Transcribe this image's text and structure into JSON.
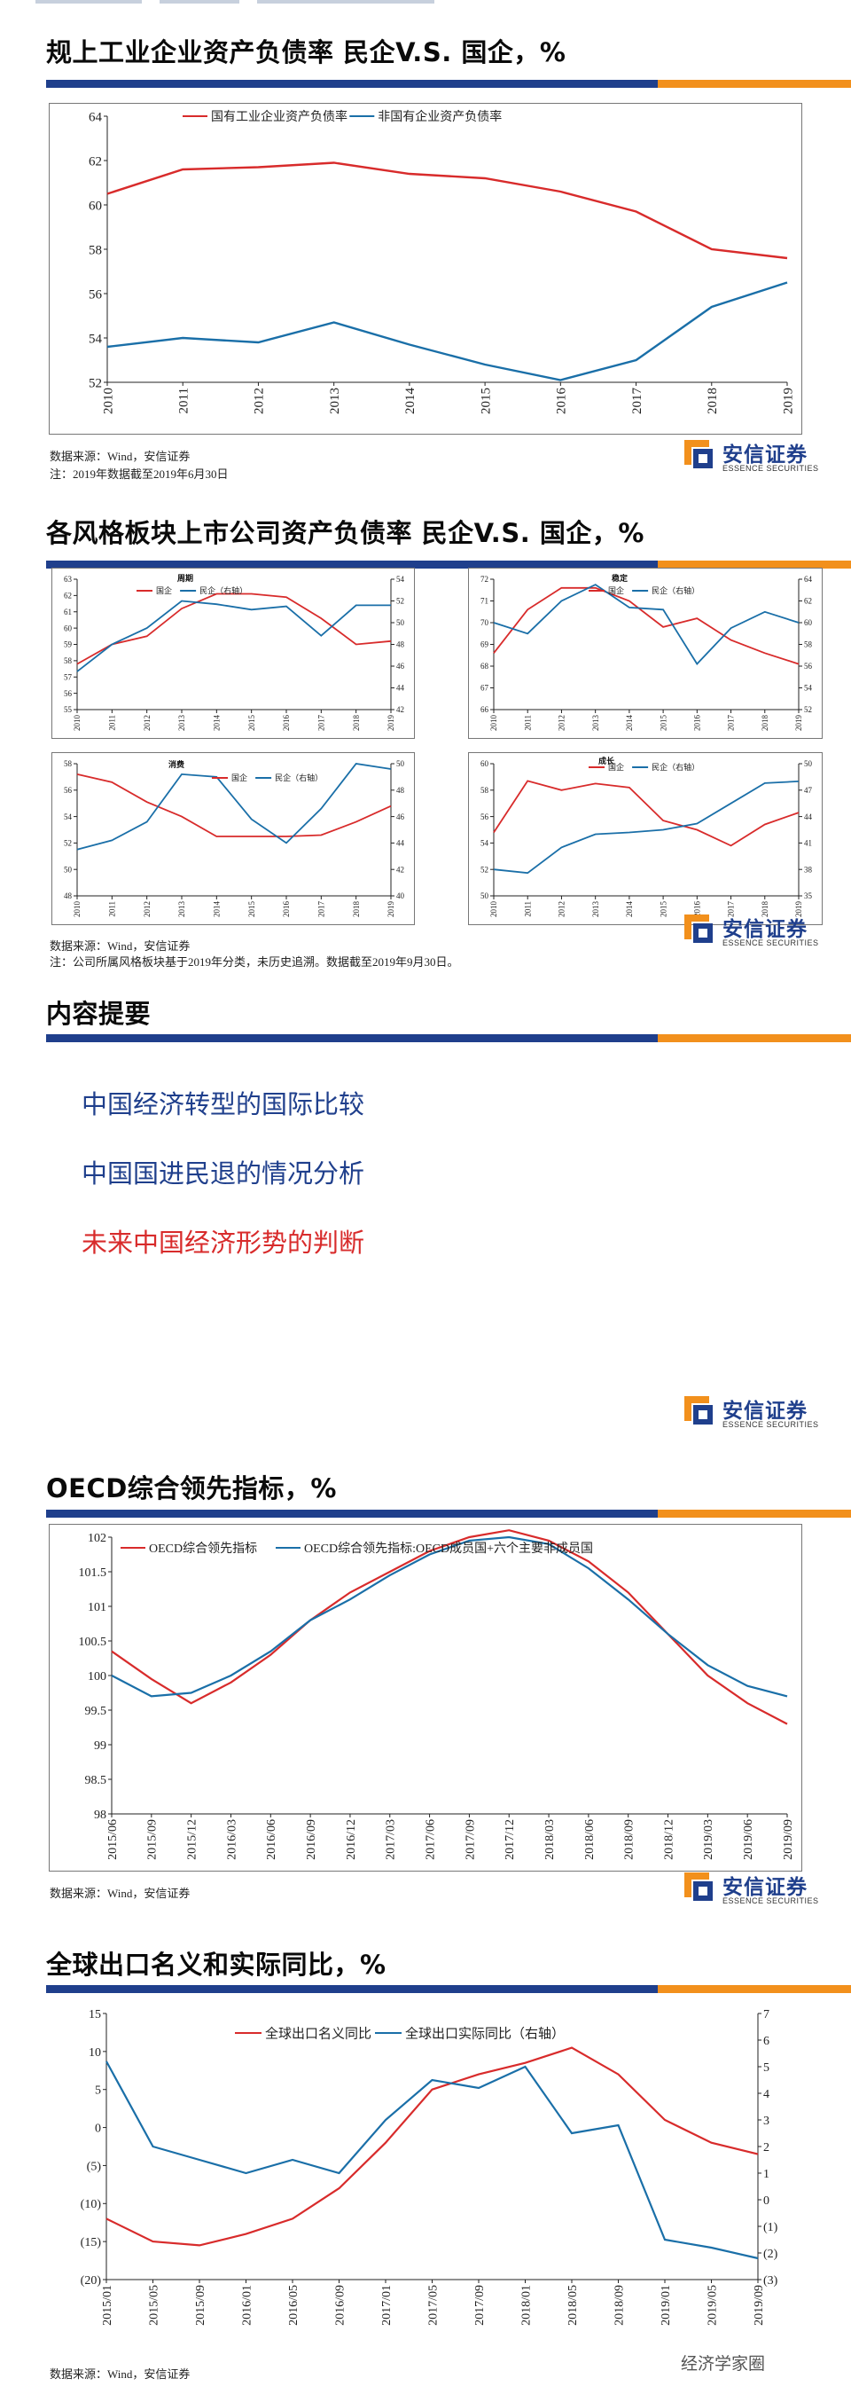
{
  "brand": {
    "name_cn": "安信证券",
    "name_en": "ESSENCE SECURITIES",
    "colors": {
      "blue": "#1f3f8c",
      "orange": "#f2901c",
      "red": "#d82b2b",
      "line_blue": "#1a6fa8"
    }
  },
  "slides": {
    "s1": {
      "title": "规上工业企业资产负债率 民企V.S. 国企，%",
      "source": "数据来源：Wind，安信证券",
      "note": "注：2019年数据截至2019年6月30日"
    },
    "s2": {
      "title": "各风格板块上市公司资产负债率 民企V.S. 国企，%",
      "source": "数据来源：Wind，安信证券",
      "note": "注：公司所属风格板块基于2019年分类，未历史追溯。数据截至2019年9月30日。"
    },
    "s3": {
      "title": "内容提要",
      "bullets": [
        {
          "text": "中国经济转型的国际比较",
          "color": "blue"
        },
        {
          "text": "中国国进民退的情况分析",
          "color": "blue"
        },
        {
          "text": "未来中国经济形势的判断",
          "color": "red"
        }
      ]
    },
    "s4": {
      "title": "OECD综合领先指标，%",
      "source": "数据来源：Wind，安信证券"
    },
    "s5": {
      "title": "全球出口名义和实际同比，%",
      "source": "数据来源：Wind，安信证券"
    }
  },
  "watermark": "经济学家圈",
  "chart_data": [
    {
      "id": "leverage_industrial",
      "type": "line",
      "x": [
        "2010",
        "2011",
        "2012",
        "2013",
        "2014",
        "2015",
        "2016",
        "2017",
        "2018",
        "2019"
      ],
      "series": [
        {
          "name": "国有工业企业资产负债率",
          "color": "#d82b2b",
          "values": [
            60.5,
            61.6,
            61.7,
            61.9,
            61.4,
            61.2,
            60.6,
            59.7,
            58.0,
            57.6
          ]
        },
        {
          "name": "非国有企业资产负债率",
          "color": "#1a6fa8",
          "values": [
            53.6,
            54.0,
            53.8,
            54.7,
            53.7,
            52.8,
            52.1,
            53.0,
            55.4,
            56.5
          ]
        }
      ],
      "ylim": [
        52,
        64
      ],
      "yticks": [
        52,
        54,
        56,
        58,
        60,
        62,
        64
      ],
      "legend": "top"
    },
    {
      "id": "style_cycle",
      "type": "line",
      "subtitle": "周期",
      "x": [
        "2010",
        "2011",
        "2012",
        "2013",
        "2014",
        "2015",
        "2016",
        "2017",
        "2018",
        "2019"
      ],
      "series": [
        {
          "name": "国企",
          "color": "#d82b2b",
          "axis": "left",
          "values": [
            57.8,
            59.0,
            59.5,
            61.2,
            62.1,
            62.1,
            61.9,
            60.6,
            59.0,
            59.2
          ]
        },
        {
          "name": "民企（右轴）",
          "color": "#1a6fa8",
          "axis": "right",
          "values": [
            45.5,
            48.0,
            49.5,
            52.0,
            51.7,
            51.2,
            51.5,
            48.8,
            51.6,
            51.6
          ]
        }
      ],
      "ylim": [
        55,
        63
      ],
      "y2lim": [
        42,
        54
      ]
    },
    {
      "id": "style_stable",
      "type": "line",
      "subtitle": "稳定",
      "x": [
        "2010",
        "2011",
        "2012",
        "2013",
        "2014",
        "2015",
        "2016",
        "2017",
        "2018",
        "2019"
      ],
      "series": [
        {
          "name": "国企",
          "color": "#d82b2b",
          "axis": "left",
          "values": [
            68.6,
            70.6,
            71.6,
            71.6,
            71.0,
            69.8,
            70.2,
            69.2,
            68.6,
            68.1
          ]
        },
        {
          "name": "民企（右轴）",
          "color": "#1a6fa8",
          "axis": "right",
          "values": [
            60,
            59,
            62,
            63.5,
            61.4,
            61.2,
            56.2,
            59.5,
            61,
            60
          ]
        }
      ],
      "ylim": [
        66,
        72
      ],
      "y2lim": [
        52,
        64
      ]
    },
    {
      "id": "style_consumer",
      "type": "line",
      "subtitle": "消费",
      "x": [
        "2010",
        "2011",
        "2012",
        "2013",
        "2014",
        "2015",
        "2016",
        "2017",
        "2018",
        "2019"
      ],
      "series": [
        {
          "name": "国企",
          "color": "#d82b2b",
          "axis": "left",
          "values": [
            57.2,
            56.6,
            55.1,
            54.0,
            52.5,
            52.5,
            52.5,
            52.6,
            53.6,
            54.8
          ]
        },
        {
          "name": "民企（右轴）",
          "color": "#1a6fa8",
          "axis": "right",
          "values": [
            43.5,
            44.2,
            45.6,
            49.2,
            49.0,
            45.8,
            44.0,
            46.6,
            50.0,
            49.6
          ]
        }
      ],
      "ylim": [
        48,
        58
      ],
      "y2lim": [
        40,
        50
      ]
    },
    {
      "id": "style_growth",
      "type": "line",
      "subtitle": "成长",
      "x": [
        "2010",
        "2011",
        "2012",
        "2013",
        "2014",
        "2015",
        "2016",
        "2017",
        "2018",
        "2019"
      ],
      "series": [
        {
          "name": "国企",
          "color": "#d82b2b",
          "axis": "left",
          "values": [
            54.8,
            58.7,
            58.0,
            58.5,
            58.2,
            55.7,
            55.0,
            53.8,
            55.4,
            56.3
          ]
        },
        {
          "name": "民企（右轴）",
          "color": "#1a6fa8",
          "axis": "right",
          "values": [
            38.0,
            37.6,
            40.5,
            42.0,
            42.2,
            42.5,
            43.2,
            45.5,
            47.8,
            48.0
          ]
        }
      ],
      "ylim": [
        50,
        60
      ],
      "y2lim": [
        35,
        50
      ]
    },
    {
      "id": "oecd_cli",
      "type": "line",
      "x": [
        "2015/06",
        "2015/09",
        "2015/12",
        "2016/03",
        "2016/06",
        "2016/09",
        "2016/12",
        "2017/03",
        "2017/06",
        "2017/09",
        "2017/12",
        "2018/03",
        "2018/06",
        "2018/09",
        "2018/12",
        "2019/03",
        "2019/06",
        "2019/09"
      ],
      "series": [
        {
          "name": "OECD综合领先指标",
          "color": "#d82b2b",
          "values": [
            100.35,
            99.95,
            99.6,
            99.9,
            100.3,
            100.8,
            101.2,
            101.5,
            101.8,
            102.0,
            102.1,
            101.95,
            101.65,
            101.2,
            100.6,
            100.0,
            99.6,
            99.3
          ]
        },
        {
          "name": "OECD综合领先指标:OECD成员国+六个主要非成员国",
          "color": "#1a6fa8",
          "values": [
            100.0,
            99.7,
            99.75,
            100.0,
            100.35,
            100.8,
            101.1,
            101.45,
            101.75,
            101.95,
            102.0,
            101.9,
            101.55,
            101.1,
            100.6,
            100.15,
            99.85,
            99.7
          ]
        }
      ],
      "ylim": [
        98,
        102
      ],
      "yticks": [
        98,
        98.5,
        99,
        99.5,
        100,
        100.5,
        101,
        101.5,
        102
      ],
      "legend": "top"
    },
    {
      "id": "global_exports",
      "type": "line",
      "x": [
        "2015/01",
        "2015/05",
        "2015/09",
        "2016/01",
        "2016/05",
        "2016/09",
        "2017/01",
        "2017/05",
        "2017/09",
        "2018/01",
        "2018/05",
        "2018/09",
        "2019/01",
        "2019/05",
        "2019/09"
      ],
      "series": [
        {
          "name": "全球出口名义同比",
          "color": "#d82b2b",
          "axis": "left",
          "values": [
            -12,
            -15,
            -15.5,
            -14,
            -12,
            -8,
            -2,
            5,
            7,
            8.5,
            10.5,
            7,
            1,
            -2,
            -3.5
          ]
        },
        {
          "name": "全球出口实际同比（右轴）",
          "color": "#1a6fa8",
          "axis": "right",
          "values": [
            5.2,
            2,
            1.5,
            1,
            1.5,
            1,
            3,
            4.5,
            4.2,
            5,
            2.5,
            2.8,
            -1.5,
            -1.8,
            -2.2
          ]
        }
      ],
      "ylim": [
        -20,
        15
      ],
      "y2lim": [
        -3,
        7
      ],
      "yticks_left": [
        "15",
        "10",
        "5",
        "0",
        "(5)",
        "(10)",
        "(15)",
        "(20)"
      ],
      "yticks_right": [
        "7",
        "6",
        "5",
        "4",
        "3",
        "2",
        "1",
        "0",
        "(1)",
        "(2)",
        "(3)"
      ],
      "legend": "top"
    }
  ]
}
